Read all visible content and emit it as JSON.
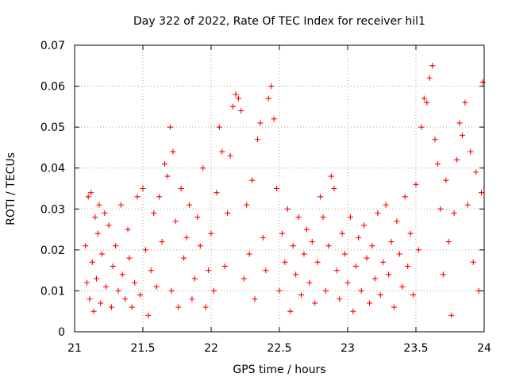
{
  "chart_data": {
    "type": "scatter",
    "title": "Day 322 of 2022, Rate Of TEC Index for receiver hil1",
    "xlabel": "GPS time / hours",
    "ylabel": "ROTI / TECUs",
    "xlim": [
      21,
      24
    ],
    "ylim": [
      0,
      0.07
    ],
    "xticks": [
      21,
      21.5,
      22,
      22.5,
      23,
      23.5,
      24
    ],
    "xtick_labels": [
      "21",
      "21.5",
      "22",
      "22.5",
      "23",
      "23.5",
      "24"
    ],
    "yticks": [
      0,
      0.01,
      0.02,
      0.03,
      0.04,
      0.05,
      0.06,
      0.07
    ],
    "ytick_labels": [
      "0",
      "0.01",
      "0.02",
      "0.03",
      "0.04",
      "0.05",
      "0.06",
      "0.07"
    ],
    "grid": true,
    "marker": "+",
    "color": "#ff0000",
    "series": [
      {
        "name": "ROTI",
        "points": [
          [
            21.08,
            0.021
          ],
          [
            21.09,
            0.012
          ],
          [
            21.1,
            0.033
          ],
          [
            21.11,
            0.008
          ],
          [
            21.12,
            0.034
          ],
          [
            21.13,
            0.017
          ],
          [
            21.14,
            0.005
          ],
          [
            21.15,
            0.028
          ],
          [
            21.16,
            0.013
          ],
          [
            21.17,
            0.024
          ],
          [
            21.18,
            0.031
          ],
          [
            21.19,
            0.007
          ],
          [
            21.2,
            0.019
          ],
          [
            21.22,
            0.029
          ],
          [
            21.23,
            0.011
          ],
          [
            21.25,
            0.026
          ],
          [
            21.27,
            0.006
          ],
          [
            21.28,
            0.016
          ],
          [
            21.3,
            0.021
          ],
          [
            21.32,
            0.01
          ],
          [
            21.34,
            0.031
          ],
          [
            21.35,
            0.014
          ],
          [
            21.37,
            0.008
          ],
          [
            21.39,
            0.025
          ],
          [
            21.4,
            0.018
          ],
          [
            21.42,
            0.006
          ],
          [
            21.44,
            0.012
          ],
          [
            21.46,
            0.033
          ],
          [
            21.48,
            0.009
          ],
          [
            21.5,
            0.035
          ],
          [
            21.52,
            0.02
          ],
          [
            21.54,
            0.004
          ],
          [
            21.56,
            0.015
          ],
          [
            21.58,
            0.029
          ],
          [
            21.6,
            0.011
          ],
          [
            21.62,
            0.033
          ],
          [
            21.64,
            0.022
          ],
          [
            21.66,
            0.041
          ],
          [
            21.68,
            0.038
          ],
          [
            21.7,
            0.05
          ],
          [
            21.71,
            0.01
          ],
          [
            21.72,
            0.044
          ],
          [
            21.74,
            0.027
          ],
          [
            21.76,
            0.006
          ],
          [
            21.78,
            0.035
          ],
          [
            21.8,
            0.018
          ],
          [
            21.82,
            0.023
          ],
          [
            21.84,
            0.031
          ],
          [
            21.86,
            0.008
          ],
          [
            21.88,
            0.013
          ],
          [
            21.9,
            0.028
          ],
          [
            21.92,
            0.021
          ],
          [
            21.94,
            0.04
          ],
          [
            21.96,
            0.006
          ],
          [
            21.98,
            0.015
          ],
          [
            22.0,
            0.024
          ],
          [
            22.02,
            0.01
          ],
          [
            22.04,
            0.034
          ],
          [
            22.06,
            0.05
          ],
          [
            22.08,
            0.044
          ],
          [
            22.1,
            0.016
          ],
          [
            22.12,
            0.029
          ],
          [
            22.14,
            0.043
          ],
          [
            22.16,
            0.055
          ],
          [
            22.18,
            0.058
          ],
          [
            22.2,
            0.057
          ],
          [
            22.22,
            0.054
          ],
          [
            22.24,
            0.013
          ],
          [
            22.26,
            0.031
          ],
          [
            22.28,
            0.019
          ],
          [
            22.3,
            0.037
          ],
          [
            22.32,
            0.008
          ],
          [
            22.34,
            0.047
          ],
          [
            22.36,
            0.051
          ],
          [
            22.38,
            0.023
          ],
          [
            22.4,
            0.015
          ],
          [
            22.42,
            0.057
          ],
          [
            22.44,
            0.06
          ],
          [
            22.46,
            0.052
          ],
          [
            22.48,
            0.035
          ],
          [
            22.5,
            0.01
          ],
          [
            22.52,
            0.024
          ],
          [
            22.54,
            0.017
          ],
          [
            22.56,
            0.03
          ],
          [
            22.58,
            0.005
          ],
          [
            22.6,
            0.021
          ],
          [
            22.62,
            0.014
          ],
          [
            22.64,
            0.028
          ],
          [
            22.66,
            0.009
          ],
          [
            22.68,
            0.019
          ],
          [
            22.7,
            0.025
          ],
          [
            22.72,
            0.012
          ],
          [
            22.74,
            0.022
          ],
          [
            22.76,
            0.007
          ],
          [
            22.78,
            0.017
          ],
          [
            22.8,
            0.033
          ],
          [
            22.82,
            0.028
          ],
          [
            22.84,
            0.01
          ],
          [
            22.86,
            0.021
          ],
          [
            22.88,
            0.038
          ],
          [
            22.9,
            0.035
          ],
          [
            22.92,
            0.015
          ],
          [
            22.94,
            0.008
          ],
          [
            22.96,
            0.024
          ],
          [
            22.98,
            0.019
          ],
          [
            23.0,
            0.012
          ],
          [
            23.02,
            0.028
          ],
          [
            23.04,
            0.005
          ],
          [
            23.06,
            0.016
          ],
          [
            23.08,
            0.023
          ],
          [
            23.1,
            0.01
          ],
          [
            23.12,
            0.026
          ],
          [
            23.14,
            0.018
          ],
          [
            23.16,
            0.007
          ],
          [
            23.18,
            0.021
          ],
          [
            23.2,
            0.013
          ],
          [
            23.22,
            0.029
          ],
          [
            23.24,
            0.009
          ],
          [
            23.26,
            0.017
          ],
          [
            23.28,
            0.031
          ],
          [
            23.3,
            0.014
          ],
          [
            23.32,
            0.022
          ],
          [
            23.34,
            0.006
          ],
          [
            23.36,
            0.027
          ],
          [
            23.38,
            0.019
          ],
          [
            23.4,
            0.011
          ],
          [
            23.42,
            0.033
          ],
          [
            23.44,
            0.016
          ],
          [
            23.46,
            0.024
          ],
          [
            23.48,
            0.009
          ],
          [
            23.5,
            0.036
          ],
          [
            23.52,
            0.02
          ],
          [
            23.54,
            0.05
          ],
          [
            23.56,
            0.057
          ],
          [
            23.58,
            0.056
          ],
          [
            23.6,
            0.062
          ],
          [
            23.62,
            0.065
          ],
          [
            23.64,
            0.047
          ],
          [
            23.66,
            0.041
          ],
          [
            23.68,
            0.03
          ],
          [
            23.7,
            0.014
          ],
          [
            23.72,
            0.037
          ],
          [
            23.74,
            0.022
          ],
          [
            23.76,
            0.004
          ],
          [
            23.78,
            0.029
          ],
          [
            23.8,
            0.042
          ],
          [
            23.82,
            0.051
          ],
          [
            23.84,
            0.048
          ],
          [
            23.86,
            0.056
          ],
          [
            23.88,
            0.031
          ],
          [
            23.9,
            0.044
          ],
          [
            23.92,
            0.017
          ],
          [
            23.94,
            0.039
          ],
          [
            23.96,
            0.01
          ],
          [
            23.98,
            0.034
          ],
          [
            23.99,
            0.061
          ]
        ]
      }
    ]
  }
}
